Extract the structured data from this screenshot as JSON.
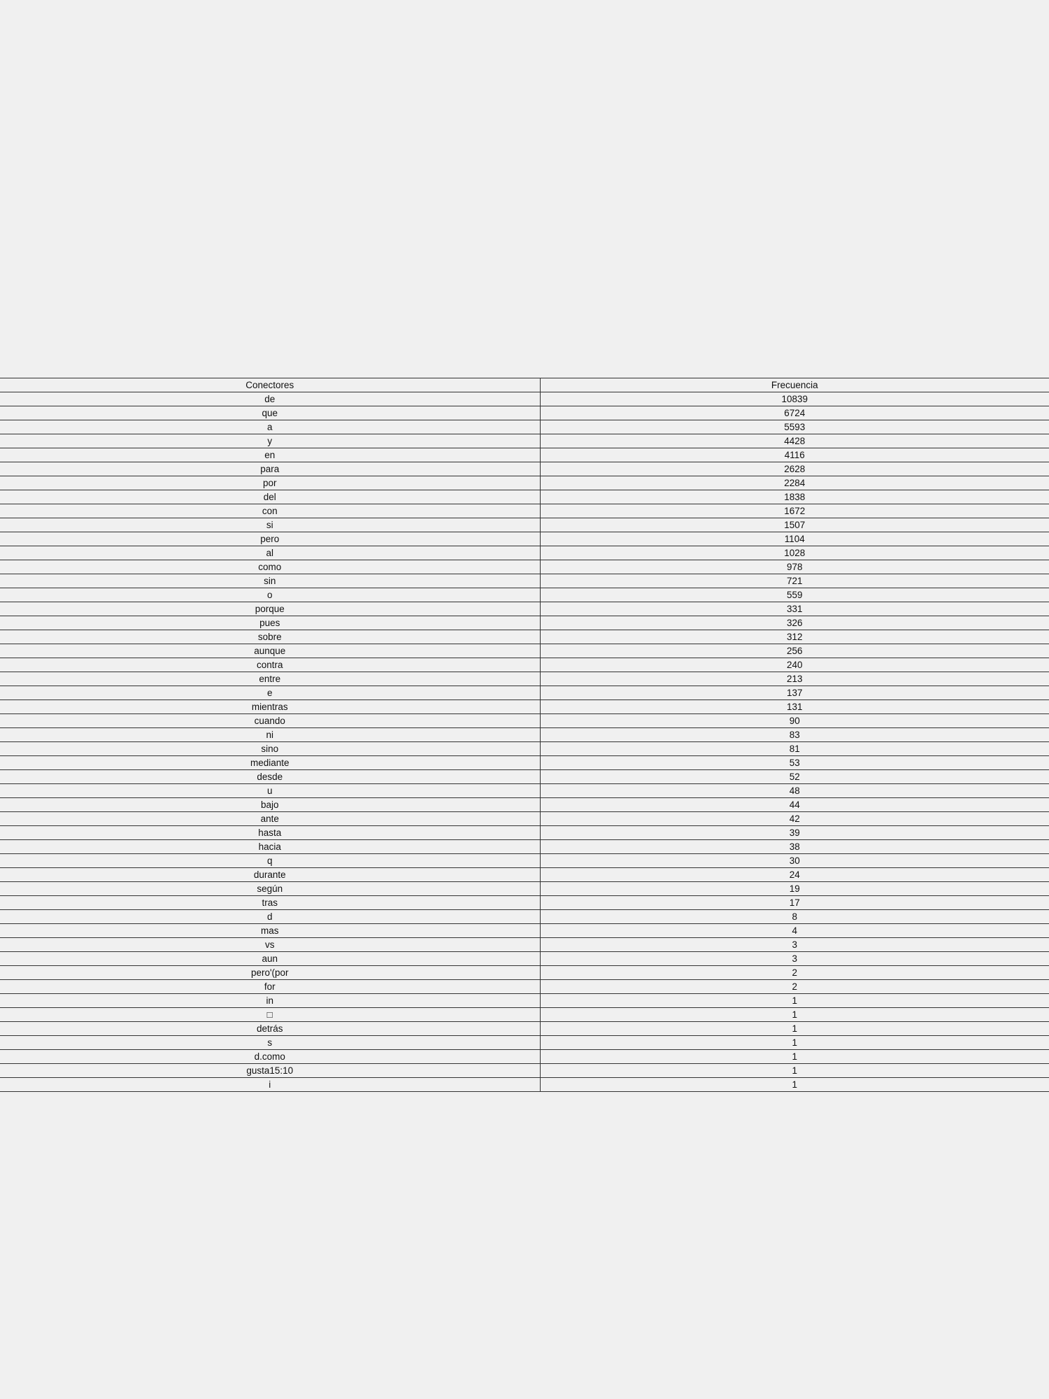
{
  "table": {
    "headers": [
      "Conectores",
      "Frecuencia"
    ],
    "rows": [
      [
        "de",
        "10839"
      ],
      [
        "que",
        "6724"
      ],
      [
        "a",
        "5593"
      ],
      [
        "y",
        "4428"
      ],
      [
        "en",
        "4116"
      ],
      [
        "para",
        "2628"
      ],
      [
        "por",
        "2284"
      ],
      [
        "del",
        "1838"
      ],
      [
        "con",
        "1672"
      ],
      [
        "si",
        "1507"
      ],
      [
        "pero",
        "1104"
      ],
      [
        "al",
        "1028"
      ],
      [
        "como",
        "978"
      ],
      [
        "sin",
        "721"
      ],
      [
        "o",
        "559"
      ],
      [
        "porque",
        "331"
      ],
      [
        "pues",
        "326"
      ],
      [
        "sobre",
        "312"
      ],
      [
        "aunque",
        "256"
      ],
      [
        "contra",
        "240"
      ],
      [
        "entre",
        "213"
      ],
      [
        "e",
        "137"
      ],
      [
        "mientras",
        "131"
      ],
      [
        "cuando",
        "90"
      ],
      [
        "ni",
        "83"
      ],
      [
        "sino",
        "81"
      ],
      [
        "mediante",
        "53"
      ],
      [
        "desde",
        "52"
      ],
      [
        "u",
        "48"
      ],
      [
        "bajo",
        "44"
      ],
      [
        "ante",
        "42"
      ],
      [
        "hasta",
        "39"
      ],
      [
        "hacia",
        "38"
      ],
      [
        "q",
        "30"
      ],
      [
        "durante",
        "24"
      ],
      [
        "según",
        "19"
      ],
      [
        "tras",
        "17"
      ],
      [
        "d",
        "8"
      ],
      [
        "mas",
        "4"
      ],
      [
        "vs",
        "3"
      ],
      [
        "aun",
        "3"
      ],
      [
        "pero'(por",
        "2"
      ],
      [
        "for",
        "2"
      ],
      [
        "in",
        "1"
      ],
      [
        "□",
        "1"
      ],
      [
        "detrás",
        "1"
      ],
      [
        "s",
        "1"
      ],
      [
        "d.como",
        "1"
      ],
      [
        "gusta15:10",
        "1"
      ],
      [
        "i",
        "1"
      ]
    ]
  }
}
